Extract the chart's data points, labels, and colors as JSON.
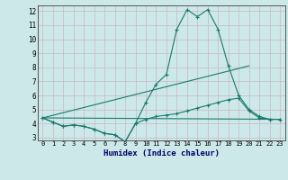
{
  "xlabel": "Humidex (Indice chaleur)",
  "xlim": [
    -0.5,
    23.5
  ],
  "ylim": [
    2.8,
    12.4
  ],
  "yticks": [
    3,
    4,
    5,
    6,
    7,
    8,
    9,
    10,
    11,
    12
  ],
  "xticks": [
    0,
    1,
    2,
    3,
    4,
    5,
    6,
    7,
    8,
    9,
    10,
    11,
    12,
    13,
    14,
    15,
    16,
    17,
    18,
    19,
    20,
    21,
    22,
    23
  ],
  "bg_color": "#cce8e8",
  "grid_color": "#c8b8c8",
  "line_color": "#1a7a6e",
  "lines": [
    {
      "x": [
        0,
        1,
        2,
        3,
        4,
        5,
        6,
        7,
        8,
        9,
        10,
        11,
        12,
        13,
        14,
        15,
        16,
        17,
        18,
        19,
        20,
        21,
        22,
        23
      ],
      "y": [
        4.4,
        4.1,
        3.8,
        3.9,
        3.8,
        3.6,
        3.3,
        3.2,
        2.7,
        4.0,
        5.5,
        6.8,
        7.5,
        10.7,
        12.1,
        11.6,
        12.1,
        10.7,
        8.1,
        6.0,
        5.0,
        4.5,
        4.3,
        4.3
      ],
      "marker": true
    },
    {
      "x": [
        0,
        1,
        2,
        3,
        4,
        5,
        6,
        7,
        8,
        9,
        10,
        11,
        12,
        13,
        14,
        15,
        16,
        17,
        18,
        19,
        20,
        21,
        22,
        23
      ],
      "y": [
        4.4,
        4.1,
        3.8,
        3.9,
        3.8,
        3.6,
        3.3,
        3.2,
        2.7,
        4.0,
        4.3,
        4.5,
        4.6,
        4.7,
        4.9,
        5.1,
        5.3,
        5.5,
        5.7,
        5.8,
        4.9,
        4.4,
        4.3,
        4.3
      ],
      "marker": true
    },
    {
      "x": [
        0,
        23
      ],
      "y": [
        4.4,
        4.3
      ],
      "marker": false
    },
    {
      "x": [
        0,
        20
      ],
      "y": [
        4.4,
        8.1
      ],
      "marker": false
    }
  ]
}
